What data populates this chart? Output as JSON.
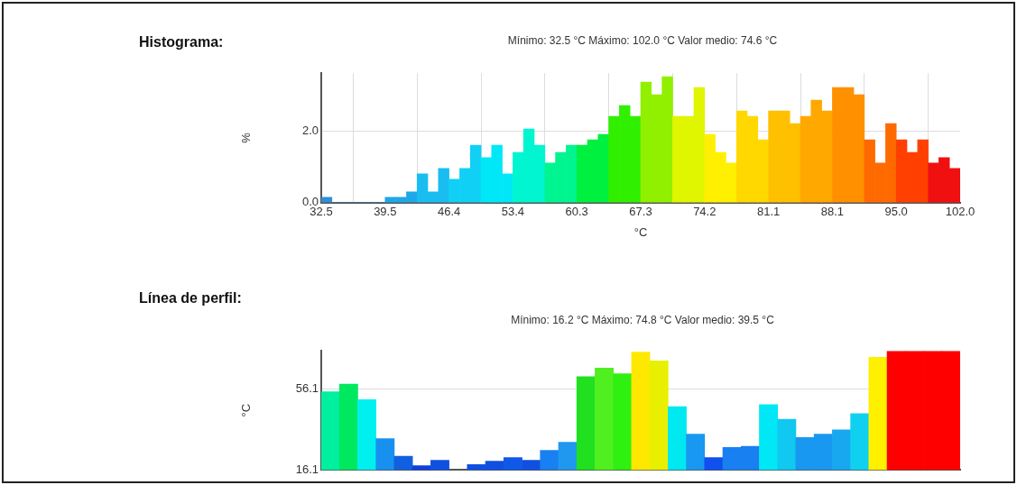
{
  "chart_data": [
    {
      "type": "histogram",
      "title": "Histograma:",
      "subtitle": "Mínimo: 32.5 °C Máximo: 102.0 °C Valor medio: 74.6 °C",
      "xlabel": "°C",
      "ylabel": "%",
      "bins": [
        32.5,
        33.66,
        34.82,
        35.98,
        37.13,
        38.29,
        39.45,
        40.61,
        41.77,
        42.93,
        44.08,
        45.24,
        46.4,
        47.56,
        48.72,
        49.88,
        51.03,
        52.19,
        53.35,
        54.51,
        55.67,
        56.83,
        57.98,
        59.14,
        60.3,
        61.46,
        62.62,
        63.78,
        64.93,
        66.09,
        67.25,
        68.41,
        69.57,
        70.73,
        71.88,
        73.04,
        74.2,
        75.36,
        76.52,
        77.68,
        78.83,
        79.99,
        81.15,
        82.31,
        83.47,
        84.63,
        85.78,
        86.94,
        88.1,
        89.26,
        90.42,
        91.58,
        92.73,
        93.89,
        95.05,
        96.21,
        97.37,
        98.53,
        99.68,
        100.84,
        102.0
      ],
      "values": [
        0.15,
        0,
        0,
        0,
        0,
        0,
        0.15,
        0.15,
        0.3,
        0.8,
        0.3,
        0.95,
        0.65,
        0.95,
        1.6,
        1.25,
        1.6,
        0.8,
        1.4,
        2.05,
        1.6,
        1.1,
        1.4,
        1.6,
        1.6,
        1.75,
        1.9,
        2.4,
        2.7,
        2.4,
        3.35,
        3.0,
        3.5,
        2.4,
        2.4,
        3.2,
        1.9,
        1.4,
        1.1,
        2.55,
        2.4,
        1.75,
        2.55,
        2.55,
        2.2,
        2.4,
        2.85,
        2.55,
        3.2,
        3.2,
        3.0,
        1.75,
        1.1,
        2.2,
        1.75,
        1.4,
        1.75,
        1.1,
        1.25,
        0.95
      ],
      "colors": [
        "#2f8fd8",
        "#2f8fd8",
        "#2f8fd8",
        "#2f8fd8",
        "#2f8fd8",
        "#2f8fd8",
        "#1fa8e8",
        "#1fa8e8",
        "#1fa8e8",
        "#19bdf0",
        "#19bdf0",
        "#19bdf0",
        "#10d0f5",
        "#10d0f5",
        "#10d0f5",
        "#00e8f8",
        "#00e8f8",
        "#00e8f8",
        "#00f5d0",
        "#00f5d0",
        "#00f5d0",
        "#00f590",
        "#00f590",
        "#00f590",
        "#00f040",
        "#00f040",
        "#00f040",
        "#30f000",
        "#30f000",
        "#30f000",
        "#90f000",
        "#90f000",
        "#90f000",
        "#e0f500",
        "#e0f500",
        "#e0f500",
        "#fff000",
        "#fff000",
        "#fff000",
        "#ffd800",
        "#ffd800",
        "#ffd800",
        "#ffc000",
        "#ffc000",
        "#ffc000",
        "#ffa800",
        "#ffa800",
        "#ffa800",
        "#ff9000",
        "#ff9000",
        "#ff9000",
        "#ff6a00",
        "#ff6a00",
        "#ff6a00",
        "#ff4000",
        "#ff4000",
        "#ff4000",
        "#f01010",
        "#f01010",
        "#f01010"
      ],
      "xlim": [
        32.5,
        102.0
      ],
      "xticks": [
        32.5,
        {
          "value": 39.45,
          "label": "39.5"
        },
        46.4,
        {
          "value": 53.35,
          "label": "53.4"
        },
        60.3,
        {
          "value": 67.25,
          "label": "67.3"
        },
        74.2,
        {
          "value": 81.15,
          "label": "81.1"
        },
        88.1,
        {
          "value": 95.05,
          "label": "95.0"
        },
        {
          "value": 102.0,
          "label": "102.0"
        }
      ],
      "ylim": [
        0,
        3.6
      ],
      "yticks": [
        {
          "value": 0,
          "label": "0.0"
        },
        {
          "value": 2,
          "label": "2.0"
        }
      ],
      "grid": true
    },
    {
      "type": "bar",
      "title": "Línea de perfil:",
      "subtitle": "Mínimo: 16.2 °C Máximo: 74.8 °C Valor medio: 39.5 °C",
      "ylabel": "°C",
      "categories": [
        null,
        null,
        null,
        null,
        null,
        null,
        null,
        null,
        null,
        null,
        null,
        null,
        null,
        null,
        null,
        null,
        null,
        null,
        null,
        null,
        null,
        null,
        null,
        null,
        null,
        null,
        null,
        null,
        null,
        null,
        null,
        null,
        null,
        null,
        null
      ],
      "values": [
        54.7,
        58.5,
        50.9,
        31.6,
        22.9,
        18.2,
        20.8,
        null,
        18.7,
        20.4,
        22.2,
        20.8,
        25.7,
        29.8,
        62.2,
        66.5,
        63.7,
        74.4,
        70.0,
        47.4,
        33.8,
        22.2,
        27.2,
        27.8,
        48.4,
        41.1,
        32.1,
        33.8,
        35.9,
        43.9,
        71.8,
        74.8,
        74.8,
        74.8,
        74.8
      ],
      "colors": [
        "#00f0a0",
        "#00e860",
        "#00f0f0",
        "#1890f0",
        "#1060e0",
        "#1040e0",
        "#1050e0",
        "#1040e0",
        "#1050e0",
        "#1050e0",
        "#1058e8",
        "#1050e0",
        "#1880f0",
        "#2098f0",
        "#20e020",
        "#50f020",
        "#30f010",
        "#ffe800",
        "#e8f000",
        "#00e8f0",
        "#1898f0",
        "#1050f0",
        "#1880f0",
        "#1880f0",
        "#00e8f5",
        "#10c8f0",
        "#1898f0",
        "#1898f0",
        "#18a8f0",
        "#10d0f0",
        "#fff000",
        "#ff0000",
        "#ff0000",
        "#ff0000",
        "#ff0000"
      ],
      "ylim": [
        16.1,
        75
      ],
      "yticks": [
        16.1,
        56.1
      ],
      "grid": "y",
      "tick_labels": "y"
    }
  ]
}
